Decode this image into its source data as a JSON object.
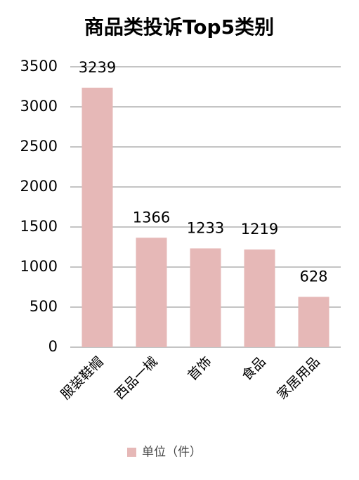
{
  "chart_data": {
    "type": "bar",
    "title": "商品类投诉Top5类别",
    "categories": [
      "服装鞋帽",
      "西品一械",
      "首饰",
      "食品",
      "家居用品"
    ],
    "series": [
      {
        "name": "单位（件）",
        "color": "#e6b8b7",
        "values": [
          3239,
          1366,
          1233,
          1219,
          628
        ]
      }
    ],
    "ylim": [
      0,
      3500
    ],
    "yticks": [
      0,
      500,
      1000,
      1500,
      2000,
      2500,
      3000,
      3500
    ],
    "grid": true,
    "legend": "bottom"
  }
}
